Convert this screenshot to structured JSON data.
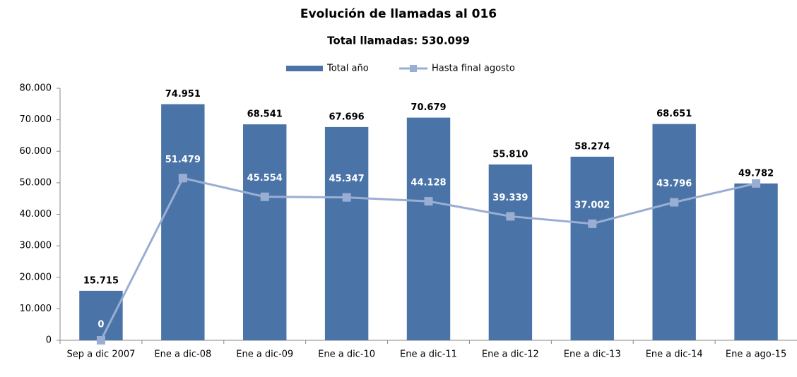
{
  "chart_data": {
    "type": "bar_line",
    "title": "Evolución de llamadas al 016",
    "subtitle": "Total llamadas: 530.099",
    "categories": [
      "Sep a dic 2007",
      "Ene a dic-08",
      "Ene a dic-09",
      "Ene a dic-10",
      "Ene a dic-11",
      "Ene a dic-12",
      "Ene a dic-13",
      "Ene a dic-14",
      "Ene a ago-15"
    ],
    "series": [
      {
        "name": "Total año",
        "type": "bar",
        "color": "#4a74a8",
        "values": [
          15715,
          74951,
          68541,
          67696,
          70679,
          55810,
          58274,
          68651,
          49782
        ],
        "value_labels": [
          "15.715",
          "74.951",
          "68.541",
          "67.696",
          "70.679",
          "55.810",
          "58.274",
          "68.651",
          "49.782"
        ]
      },
      {
        "name": "Hasta final agosto",
        "type": "line",
        "color": "#9aaed3",
        "values": [
          0,
          51479,
          45554,
          45347,
          44128,
          39339,
          37002,
          43796,
          49782
        ],
        "value_labels": [
          "0",
          "51.479",
          "45.554",
          "45.347",
          "44.128",
          "39.339",
          "37.002",
          "43.796",
          null
        ]
      }
    ],
    "ylim": [
      0,
      80000
    ],
    "yticks": [
      0,
      {
        "value": 10000,
        "label": "10.000"
      },
      {
        "value": 20000,
        "label": "20.000"
      },
      {
        "value": 30000,
        "label": "30.000"
      },
      {
        "value": 40000,
        "label": "40.000"
      },
      {
        "value": 50000,
        "label": "50.000"
      },
      {
        "value": 60000,
        "label": "60.000"
      },
      {
        "value": 70000,
        "label": "70.000"
      },
      {
        "value": 80000,
        "label": "80.000"
      }
    ],
    "legend": "top"
  }
}
